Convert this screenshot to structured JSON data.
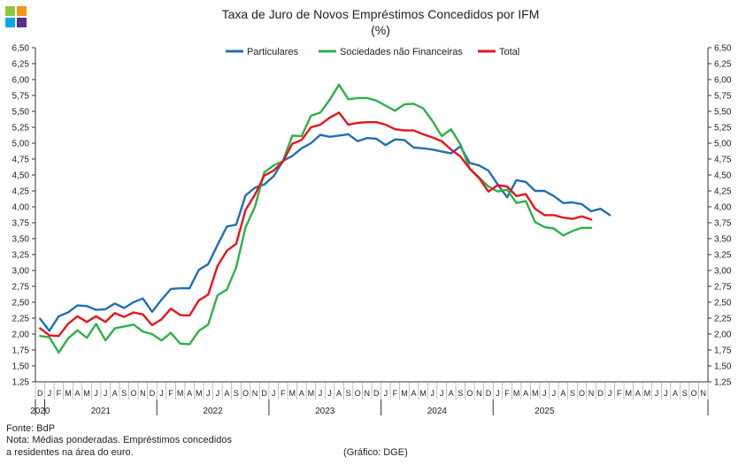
{
  "chart_data": {
    "type": "line",
    "title": "Taxa de Juro de Novos Empréstimos  Concedidos por IFM",
    "subtitle": "(%)",
    "ylim": [
      1.25,
      6.5
    ],
    "ytick_step": 0.25,
    "y_decimals": 2,
    "decimal_separator": ",",
    "month_labels": [
      "D",
      "J",
      "F",
      "M",
      "A",
      "M",
      "J",
      "J",
      "A",
      "S",
      "O",
      "N",
      "D",
      "J",
      "F",
      "M",
      "A",
      "M",
      "J",
      "J",
      "A",
      "S",
      "O",
      "N",
      "D",
      "J",
      "F",
      "M",
      "A",
      "M",
      "J",
      "J",
      "A",
      "S",
      "O",
      "N",
      "D",
      "J",
      "F",
      "M",
      "A",
      "M",
      "J",
      "J",
      "A",
      "S",
      "O",
      "N",
      "D",
      "J",
      "F",
      "M",
      "A",
      "M",
      "J",
      "J",
      "A",
      "S",
      "O",
      "N",
      "D",
      "J",
      "F",
      "M",
      "A",
      "M",
      "J",
      "J",
      "A",
      "S",
      "O",
      "N"
    ],
    "years": [
      {
        "label": "2020",
        "start": 0,
        "end": 0
      },
      {
        "label": "2021",
        "start": 1,
        "end": 12
      },
      {
        "label": "2022",
        "start": 13,
        "end": 24
      },
      {
        "label": "2023",
        "start": 25,
        "end": 36
      },
      {
        "label": "2024",
        "start": 37,
        "end": 48
      },
      {
        "label": "2025",
        "start": 49,
        "end": 59
      }
    ],
    "series": [
      {
        "name": "Particulares",
        "color": "#1f6fb5",
        "values": [
          2.24,
          2.05,
          2.28,
          2.34,
          2.45,
          2.44,
          2.38,
          2.39,
          2.48,
          2.41,
          2.5,
          2.56,
          2.35,
          2.54,
          2.71,
          2.72,
          2.72,
          3.01,
          3.1,
          3.4,
          3.69,
          3.72,
          4.18,
          4.3,
          4.35,
          4.48,
          4.72,
          4.8,
          4.92,
          5.0,
          5.13,
          5.1,
          5.12,
          5.14,
          5.03,
          5.08,
          5.07,
          4.97,
          5.06,
          5.05,
          4.93,
          4.92,
          4.9,
          4.87,
          4.84,
          4.95,
          4.69,
          4.65,
          4.57,
          4.35,
          4.15,
          4.42,
          4.39,
          4.25,
          4.25,
          4.17,
          4.06,
          4.07,
          4.04,
          3.93,
          3.97,
          3.87
        ]
      },
      {
        "name": "Sociedades não Financeiras",
        "color": "#2db04a",
        "values": [
          1.97,
          1.95,
          1.71,
          1.93,
          2.06,
          1.94,
          2.16,
          1.9,
          2.09,
          2.12,
          2.15,
          2.04,
          2.0,
          1.9,
          2.02,
          1.85,
          1.84,
          2.05,
          2.15,
          2.61,
          2.7,
          3.05,
          3.68,
          4.0,
          4.54,
          4.65,
          4.72,
          5.12,
          5.11,
          5.43,
          5.48,
          5.68,
          5.92,
          5.69,
          5.71,
          5.71,
          5.67,
          5.59,
          5.51,
          5.61,
          5.62,
          5.55,
          5.35,
          5.11,
          5.22,
          4.98,
          4.6,
          4.46,
          4.32,
          4.24,
          4.27,
          4.06,
          4.09,
          3.76,
          3.68,
          3.66,
          3.55,
          3.62,
          3.67,
          3.67
        ]
      },
      {
        "name": "Total",
        "color": "#e8141b",
        "values": [
          2.09,
          1.98,
          1.97,
          2.16,
          2.28,
          2.19,
          2.28,
          2.19,
          2.33,
          2.27,
          2.34,
          2.31,
          2.14,
          2.23,
          2.4,
          2.3,
          2.29,
          2.53,
          2.62,
          3.07,
          3.31,
          3.42,
          3.95,
          4.19,
          4.49,
          4.57,
          4.71,
          4.99,
          5.05,
          5.25,
          5.29,
          5.4,
          5.48,
          5.29,
          5.32,
          5.33,
          5.33,
          5.29,
          5.22,
          5.2,
          5.2,
          5.14,
          5.09,
          5.03,
          4.9,
          4.79,
          4.6,
          4.45,
          4.24,
          4.34,
          4.32,
          4.17,
          4.2,
          3.97,
          3.87,
          3.87,
          3.83,
          3.81,
          3.85,
          3.8
        ]
      }
    ]
  },
  "logo_colors": [
    "#8dc63f",
    "#f7941d",
    "#00a8e1",
    "#5b2d8e"
  ],
  "notes": {
    "source": "Fonte: BdP",
    "note_line1": "Nota: Médias ponderadas. Empréstimos concedidos",
    "note_line2": "a residentes na área do euro.",
    "credit": "(Gráfico: DGE)"
  }
}
